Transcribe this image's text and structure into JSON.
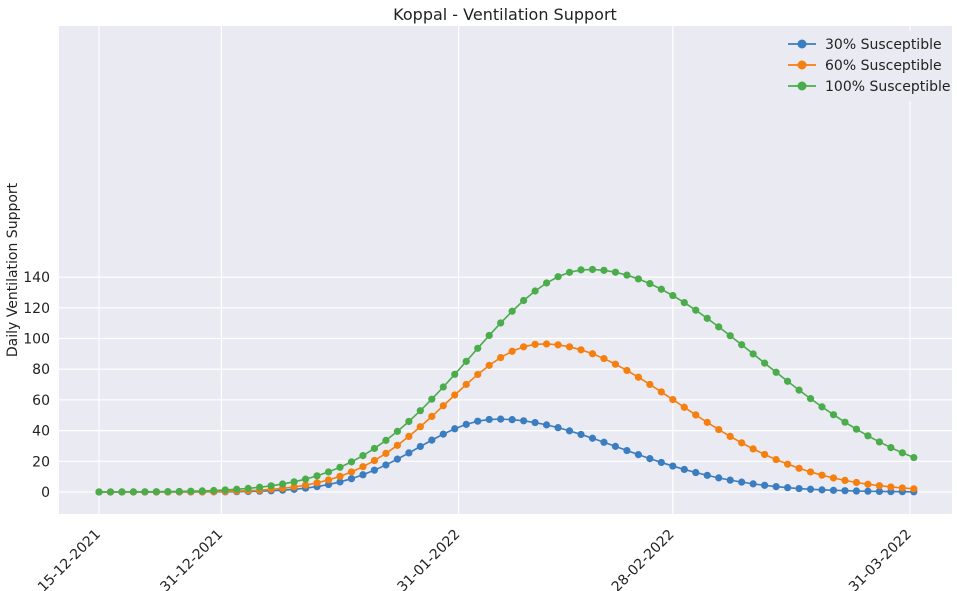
{
  "chart_data": {
    "type": "line",
    "title": "Koppal - Ventilation Support",
    "xlabel": "",
    "ylabel": "Daily Ventilation Support",
    "x_start_date": "15-12-2021",
    "x_end_date": "31-03-2022",
    "x_tick_labels": [
      "15-12-2021",
      "31-12-2021",
      "31-01-2022",
      "28-02-2022",
      "31-03-2022"
    ],
    "y_ticks": [
      0,
      20,
      40,
      60,
      80,
      100,
      120,
      140
    ],
    "ylim": [
      -7,
      152
    ],
    "grid": true,
    "legend_position": "top-right",
    "series": [
      {
        "name": "30% Susceptible",
        "color": "#3a7dc0",
        "peak_date": "05-02-2022",
        "peak_value": 47.5,
        "rise_width_days": 10.3,
        "fall_width_days": 16
      },
      {
        "name": "60% Susceptible",
        "color": "#f57f0f",
        "peak_date": "11-02-2022",
        "peak_value": 96.5,
        "rise_width_days": 12.5,
        "fall_width_days": 17.5
      },
      {
        "name": "100% Susceptible",
        "color": "#4aac4a",
        "peak_date": "17-02-2022",
        "peak_value": 145,
        "rise_width_days": 15.5,
        "fall_width_days": 22
      }
    ]
  }
}
